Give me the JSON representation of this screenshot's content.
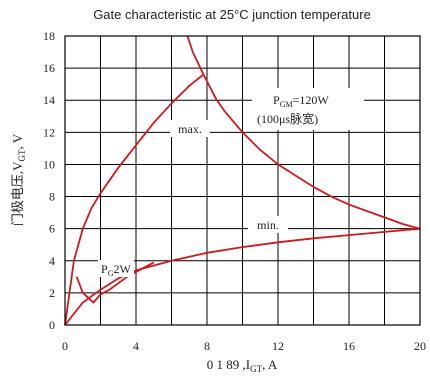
{
  "chart_data": {
    "type": "line",
    "title": "Gate characteristic at 25°C junction temperature",
    "xlabel_prefix": "0 1 89 ,I",
    "xlabel_sub": "GT",
    "xlabel_unit": ", A",
    "ylabel_prefix": "门极电压,V",
    "ylabel_sub": "GT",
    "ylabel_unit": ", V",
    "xlim": [
      0,
      20
    ],
    "ylim": [
      0,
      18
    ],
    "x_ticks": [
      0,
      4,
      8,
      12,
      16,
      20
    ],
    "y_ticks": [
      0,
      2,
      4,
      6,
      8,
      10,
      12,
      14,
      16,
      18
    ],
    "x_tick_labels": [
      "0",
      "4",
      "8",
      "12",
      "16",
      "20"
    ],
    "y_tick_labels": [
      "0",
      "2",
      "4",
      "6",
      "8",
      "10",
      "12",
      "14",
      "16",
      "18"
    ],
    "grid": true,
    "series": [
      {
        "name": "max.",
        "x": [
          0,
          0.5,
          1,
          1.5,
          2,
          3,
          4,
          5,
          6,
          7,
          7.8
        ],
        "y": [
          0,
          4,
          6,
          7.3,
          8.2,
          9.8,
          11.2,
          12.6,
          13.8,
          14.9,
          15.6
        ]
      },
      {
        "name": "min.",
        "x": [
          0,
          1,
          2,
          3,
          4,
          6,
          8,
          10,
          12,
          14,
          16,
          18,
          20
        ],
        "y": [
          0,
          1.4,
          2.2,
          2.9,
          3.4,
          4.0,
          4.5,
          4.85,
          5.15,
          5.4,
          5.6,
          5.8,
          6.0
        ]
      },
      {
        "name": "P_GM=120W",
        "x": [
          6.9,
          7.2,
          7.8,
          8.5,
          9,
          10,
          11,
          12,
          13,
          14,
          15,
          16,
          17,
          18,
          19,
          20
        ],
        "y": [
          18,
          17,
          15.6,
          14.1,
          13.3,
          12,
          10.9,
          10,
          9.3,
          8.6,
          8,
          7.5,
          7.1,
          6.7,
          6.3,
          6.0
        ]
      },
      {
        "name": "P_G=2W",
        "x": [
          0.66,
          0.8,
          1,
          1.3,
          1.6,
          2,
          2.5,
          3,
          3.5,
          4,
          4.5,
          5
        ],
        "y": [
          3.0,
          2.6,
          2.0,
          1.7,
          1.4,
          1.9,
          2.2,
          2.6,
          3.0,
          3.3,
          3.6,
          3.9
        ]
      }
    ],
    "annotations": {
      "max_label": "max.",
      "min_label": "min.",
      "pgm_prefix": "P",
      "pgm_sub": "GM",
      "pgm_rest": "=120W",
      "pgm_line2": "(100μs脉宽)",
      "pg_prefix": "P",
      "pg_sub": "G",
      "pg_rest": "2W"
    }
  }
}
